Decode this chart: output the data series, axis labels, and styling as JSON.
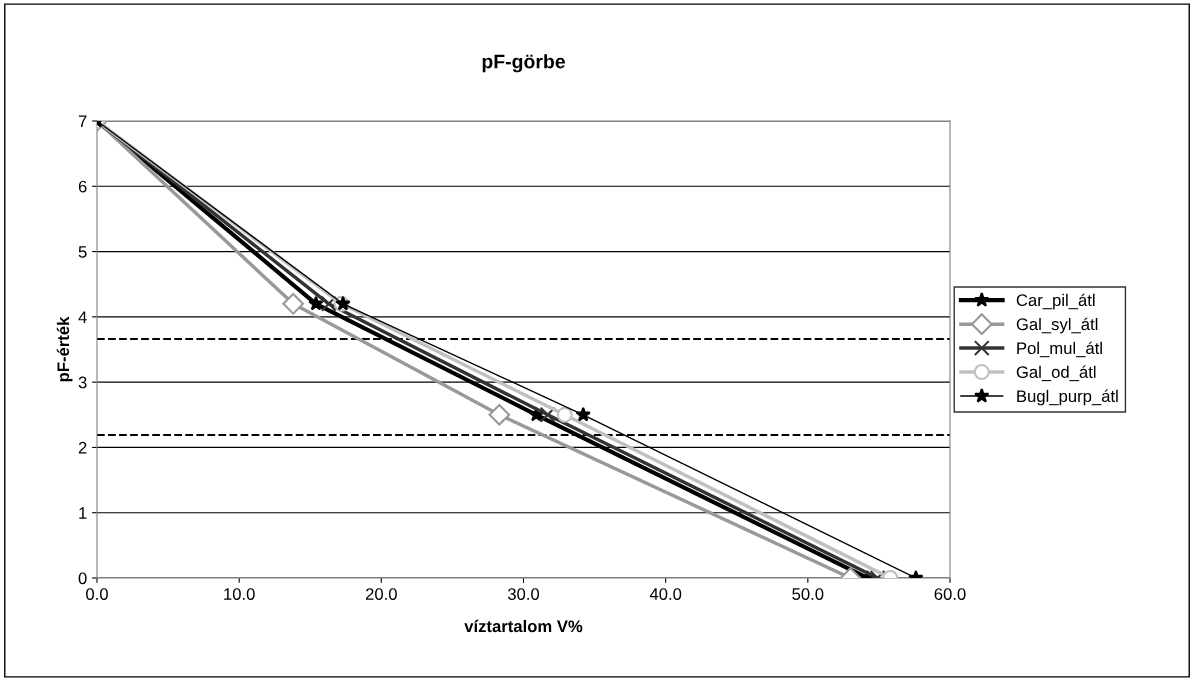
{
  "chart_data": {
    "type": "line",
    "title": "pF-görbe",
    "xlabel": "víztartalom V%",
    "ylabel": "pF-érték",
    "xlim": [
      0,
      60
    ],
    "xticks": [
      {
        "value": 0,
        "label": "0.0"
      },
      {
        "value": 10,
        "label": "10.0"
      },
      {
        "value": 20,
        "label": "20.0"
      },
      {
        "value": 30,
        "label": "30.0"
      },
      {
        "value": 40,
        "label": "40.0"
      },
      {
        "value": 50,
        "label": "50.0"
      },
      {
        "value": 60,
        "label": "60.0"
      }
    ],
    "ylim": [
      0,
      7
    ],
    "yticks": [
      0,
      1,
      2,
      3,
      4,
      5,
      6,
      7
    ],
    "grid": "y",
    "legend": "right",
    "series": [
      {
        "name": "Car_pil_átl",
        "color": "#000000",
        "marker": "star",
        "x": [
          0,
          15.4,
          30.9,
          54.2
        ],
        "values": [
          7,
          4.2,
          2.5,
          0
        ]
      },
      {
        "name": "Gal_syl_átl",
        "color": "#999999",
        "marker": "diamond",
        "x": [
          0,
          13.8,
          28.3,
          53.0
        ],
        "values": [
          7,
          4.2,
          2.5,
          0
        ]
      },
      {
        "name": "Pol_mul_átl",
        "color": "#333333",
        "marker": "cross",
        "x": [
          0,
          16.3,
          31.7,
          54.9
        ],
        "values": [
          7,
          4.2,
          2.5,
          0
        ]
      },
      {
        "name": "Gal_od_átl",
        "color": "#c0c0c0",
        "marker": "circle",
        "x": [
          0,
          17.2,
          32.9,
          55.8
        ],
        "values": [
          7,
          4.2,
          2.5,
          0
        ]
      },
      {
        "name": "Bugl_purp_átl",
        "color": "#000000",
        "marker": "star",
        "x": [
          0,
          17.3,
          34.2,
          57.6
        ],
        "values": [
          7,
          4.2,
          2.5,
          0
        ]
      }
    ],
    "ref_lines": [
      {
        "axis": "y",
        "value": 3.66,
        "color": "#000000",
        "line_style": "dashed"
      },
      {
        "axis": "y",
        "value": 2.19,
        "color": "#000000",
        "line_style": "dashed"
      }
    ]
  }
}
